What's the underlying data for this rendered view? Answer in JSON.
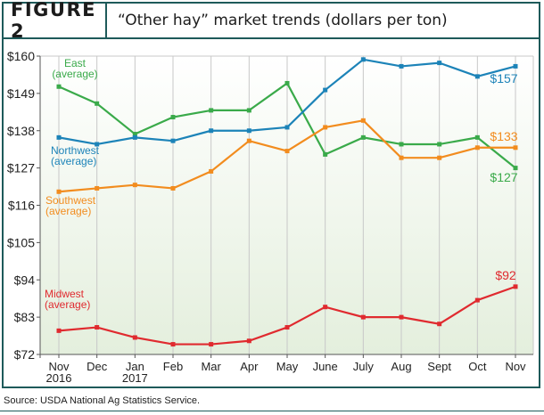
{
  "figure": {
    "label": "FIGURE 2",
    "title": "“Other hay” market trends (dollars per ton)"
  },
  "source": "Source: USDA National Ag Statistics Service.",
  "colors": {
    "frame": "#1e5a5a",
    "east": "#3aaa4a",
    "northwest": "#1c83b8",
    "southwest": "#f28c1e",
    "midwest": "#e02a2f",
    "plot_bg_top": "#ffffff",
    "plot_bg_bottom": "#e4efdd"
  },
  "chart_data": {
    "type": "line",
    "title": "“Other hay” market trends (dollars per ton)",
    "xlabel": "",
    "ylabel": "",
    "categories": [
      "Nov\n2016",
      "Dec",
      "Jan\n2017",
      "Feb",
      "Mar",
      "Apr",
      "May",
      "June",
      "July",
      "Aug",
      "Sept",
      "Oct",
      "Nov"
    ],
    "ylim": [
      72,
      160
    ],
    "yticks": [
      72,
      83,
      94,
      105,
      116,
      127,
      138,
      149,
      160
    ],
    "ytick_labels": [
      "$72",
      "$83",
      "$94",
      "$105",
      "$116",
      "$127",
      "$138",
      "$149",
      "$160"
    ],
    "grid": "vertical",
    "series": [
      {
        "name": "East\n(average)",
        "color": "#3aaa4a",
        "values": [
          151,
          146,
          137,
          142,
          144,
          144,
          152,
          131,
          136,
          134,
          134,
          136,
          127
        ],
        "end_label": "$127"
      },
      {
        "name": "Northwest\n(average)",
        "color": "#1c83b8",
        "values": [
          136,
          134,
          136,
          135,
          138,
          138,
          139,
          150,
          159,
          157,
          158,
          154,
          157
        ],
        "end_label": "$157"
      },
      {
        "name": "Southwest\n(average)",
        "color": "#f28c1e",
        "values": [
          120,
          121,
          122,
          121,
          126,
          135,
          132,
          139,
          141,
          130,
          130,
          133,
          133
        ],
        "end_label": "$133"
      },
      {
        "name": "Midwest\n(average)",
        "color": "#e02a2f",
        "values": [
          79,
          80,
          77,
          75,
          75,
          76,
          80,
          86,
          83,
          83,
          81,
          88,
          92
        ],
        "end_label": "$92"
      }
    ]
  }
}
